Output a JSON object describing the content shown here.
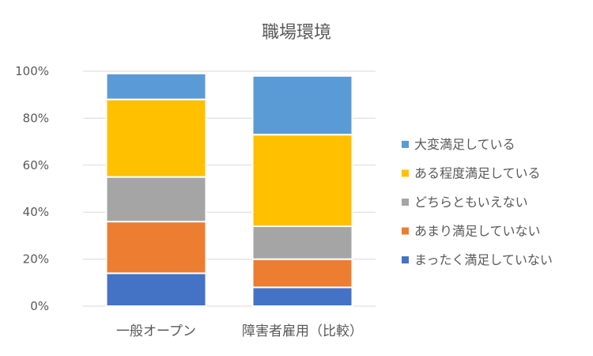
{
  "chart_data": {
    "type": "bar",
    "stacked": true,
    "percent": true,
    "title": "職場環境",
    "xlabel": "",
    "ylabel": "",
    "ylim": [
      0,
      100
    ],
    "yticks": [
      "0%",
      "20%",
      "40%",
      "60%",
      "80%",
      "100%"
    ],
    "grid": true,
    "legend_position": "right",
    "categories": [
      "一般オープン",
      "障害者雇用（比較）"
    ],
    "series": [
      {
        "name": "まったく満足していない",
        "color": "#4472C4",
        "values": [
          14,
          8
        ]
      },
      {
        "name": "あまり満足していない",
        "color": "#ED7D31",
        "values": [
          22,
          12
        ]
      },
      {
        "name": "どちらともいえない",
        "color": "#A5A5A5",
        "values": [
          19,
          14
        ]
      },
      {
        "name": "ある程度満足している",
        "color": "#FFC000",
        "values": [
          33,
          39
        ]
      },
      {
        "name": "大変満足している",
        "color": "#5B9BD5",
        "values": [
          11,
          25
        ]
      }
    ]
  }
}
